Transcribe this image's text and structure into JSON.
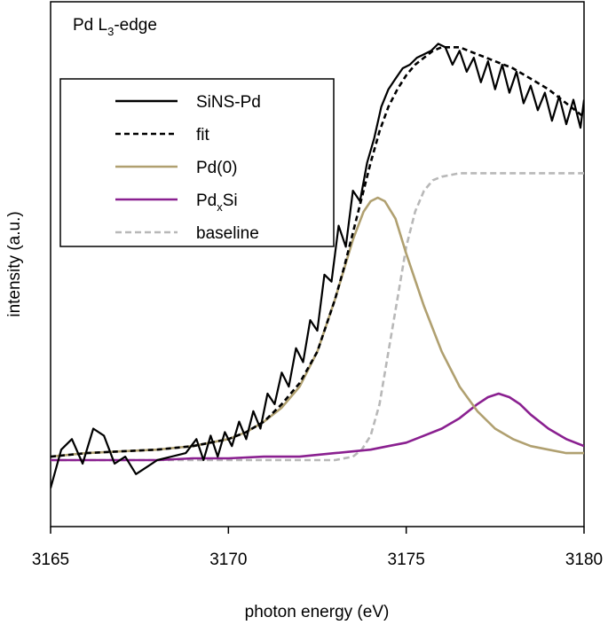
{
  "chart_data": {
    "type": "line",
    "title": "Pd L",
    "title_sub": "3",
    "title_suffix": "-edge",
    "xlabel": "photon energy (eV)",
    "ylabel": "intensity (a.u.)",
    "xlim": [
      3165,
      3180
    ],
    "ylim": [
      -0.2,
      1.3
    ],
    "xticks": [
      3165,
      3170,
      3175,
      3180
    ],
    "xtick_labels": [
      "3165",
      "3170",
      "3175",
      "3180"
    ],
    "grid": false,
    "legend_position": "upper-left",
    "legend": [
      {
        "id": "sins",
        "label": "SiNS-Pd",
        "sub": "",
        "suffix": "",
        "color": "#000000",
        "dash": "solid"
      },
      {
        "id": "fit",
        "label": "fit",
        "sub": "",
        "suffix": "",
        "color": "#000000",
        "dash": "dashed"
      },
      {
        "id": "pd0",
        "label": "Pd(0)",
        "sub": "",
        "suffix": "",
        "color": "#b0a070",
        "dash": "solid"
      },
      {
        "id": "pdxsi",
        "label": "Pd",
        "sub": "x",
        "suffix": "Si",
        "color": "#8a2090",
        "dash": "solid"
      },
      {
        "id": "baseline",
        "label": "baseline",
        "sub": "",
        "suffix": "",
        "color": "#b8b8b8",
        "dash": "dashed"
      }
    ],
    "series": [
      {
        "id": "sins",
        "name": "SiNS-Pd",
        "x": [
          3165.0,
          3165.3,
          3165.6,
          3165.9,
          3166.2,
          3166.5,
          3166.8,
          3167.1,
          3167.4,
          3167.7,
          3168.0,
          3168.4,
          3168.8,
          3169.1,
          3169.3,
          3169.5,
          3169.7,
          3169.9,
          3170.1,
          3170.3,
          3170.5,
          3170.7,
          3170.9,
          3171.1,
          3171.3,
          3171.5,
          3171.7,
          3171.9,
          3172.1,
          3172.3,
          3172.5,
          3172.7,
          3172.9,
          3173.1,
          3173.3,
          3173.5,
          3173.7,
          3173.9,
          3174.1,
          3174.3,
          3174.5,
          3174.7,
          3174.9,
          3175.1,
          3175.3,
          3175.5,
          3175.7,
          3175.9,
          3176.1,
          3176.3,
          3176.5,
          3176.7,
          3176.9,
          3177.1,
          3177.3,
          3177.5,
          3177.7,
          3177.9,
          3178.1,
          3178.3,
          3178.5,
          3178.7,
          3178.9,
          3179.1,
          3179.3,
          3179.5,
          3179.7,
          3179.9,
          3180.0
        ],
        "y": [
          -0.09,
          0.02,
          0.05,
          -0.02,
          0.08,
          0.06,
          -0.02,
          0.0,
          -0.05,
          -0.03,
          -0.01,
          0.0,
          0.01,
          0.05,
          -0.01,
          0.06,
          0.0,
          0.07,
          0.03,
          0.1,
          0.05,
          0.13,
          0.08,
          0.18,
          0.15,
          0.24,
          0.2,
          0.31,
          0.27,
          0.39,
          0.36,
          0.52,
          0.5,
          0.66,
          0.6,
          0.76,
          0.73,
          0.84,
          0.91,
          1.0,
          1.05,
          1.08,
          1.11,
          1.12,
          1.14,
          1.15,
          1.16,
          1.18,
          1.17,
          1.12,
          1.16,
          1.1,
          1.14,
          1.07,
          1.13,
          1.05,
          1.12,
          1.04,
          1.1,
          1.01,
          1.06,
          0.99,
          1.04,
          0.96,
          1.03,
          0.95,
          1.02,
          0.94,
          1.02
        ]
      },
      {
        "id": "fit",
        "name": "fit",
        "x": [
          3165.0,
          3166.0,
          3167.0,
          3168.0,
          3168.5,
          3169.0,
          3169.5,
          3170.0,
          3170.5,
          3171.0,
          3171.5,
          3172.0,
          3172.5,
          3173.0,
          3173.25,
          3173.5,
          3173.75,
          3174.0,
          3174.25,
          3174.5,
          3174.75,
          3175.0,
          3175.25,
          3175.5,
          3175.75,
          3176.0,
          3176.25,
          3176.5,
          3176.75,
          3177.0,
          3177.5,
          3178.0,
          3178.5,
          3179.0,
          3179.5,
          3180.0
        ],
        "y": [
          0.0,
          0.01,
          0.015,
          0.02,
          0.025,
          0.03,
          0.04,
          0.05,
          0.07,
          0.1,
          0.15,
          0.21,
          0.3,
          0.45,
          0.54,
          0.64,
          0.74,
          0.84,
          0.93,
          1.0,
          1.05,
          1.09,
          1.12,
          1.14,
          1.16,
          1.17,
          1.17,
          1.17,
          1.16,
          1.15,
          1.13,
          1.11,
          1.08,
          1.05,
          1.01,
          0.97
        ]
      },
      {
        "id": "pd0",
        "name": "Pd(0)",
        "x": [
          3165.0,
          3166.0,
          3167.0,
          3168.0,
          3169.0,
          3170.0,
          3170.5,
          3171.0,
          3171.5,
          3172.0,
          3172.5,
          3173.0,
          3173.5,
          3173.8,
          3174.0,
          3174.2,
          3174.4,
          3174.7,
          3175.0,
          3175.5,
          3176.0,
          3176.5,
          3177.0,
          3177.5,
          3178.0,
          3178.5,
          3179.0,
          3179.5,
          3180.0
        ],
        "y": [
          0.0,
          0.01,
          0.015,
          0.02,
          0.03,
          0.05,
          0.07,
          0.1,
          0.14,
          0.2,
          0.3,
          0.45,
          0.62,
          0.7,
          0.73,
          0.74,
          0.73,
          0.68,
          0.58,
          0.43,
          0.3,
          0.2,
          0.13,
          0.08,
          0.05,
          0.03,
          0.02,
          0.01,
          0.01
        ]
      },
      {
        "id": "pdxsi",
        "name": "PdxSi",
        "x": [
          3165.0,
          3166.0,
          3167.0,
          3168.0,
          3169.0,
          3170.0,
          3171.0,
          3172.0,
          3173.0,
          3174.0,
          3174.5,
          3175.0,
          3175.5,
          3176.0,
          3176.5,
          3177.0,
          3177.3,
          3177.6,
          3177.9,
          3178.2,
          3178.5,
          3179.0,
          3179.5,
          3180.0
        ],
        "y": [
          -0.01,
          -0.01,
          -0.01,
          -0.01,
          -0.005,
          -0.005,
          0.0,
          0.0,
          0.01,
          0.02,
          0.03,
          0.04,
          0.06,
          0.08,
          0.11,
          0.15,
          0.17,
          0.18,
          0.17,
          0.15,
          0.12,
          0.08,
          0.05,
          0.03
        ]
      },
      {
        "id": "baseline",
        "name": "baseline",
        "x": [
          3165.0,
          3166.0,
          3167.0,
          3168.0,
          3169.0,
          3170.0,
          3171.0,
          3172.0,
          3173.0,
          3173.5,
          3173.75,
          3174.0,
          3174.25,
          3174.5,
          3174.75,
          3175.0,
          3175.25,
          3175.5,
          3175.75,
          3176.0,
          3176.5,
          3177.0,
          3178.0,
          3179.0,
          3180.0
        ],
        "y": [
          -0.01,
          -0.01,
          -0.01,
          -0.01,
          -0.01,
          -0.01,
          -0.01,
          -0.01,
          -0.01,
          0.0,
          0.02,
          0.06,
          0.15,
          0.3,
          0.45,
          0.6,
          0.7,
          0.76,
          0.79,
          0.8,
          0.81,
          0.81,
          0.81,
          0.81,
          0.81
        ]
      }
    ]
  }
}
